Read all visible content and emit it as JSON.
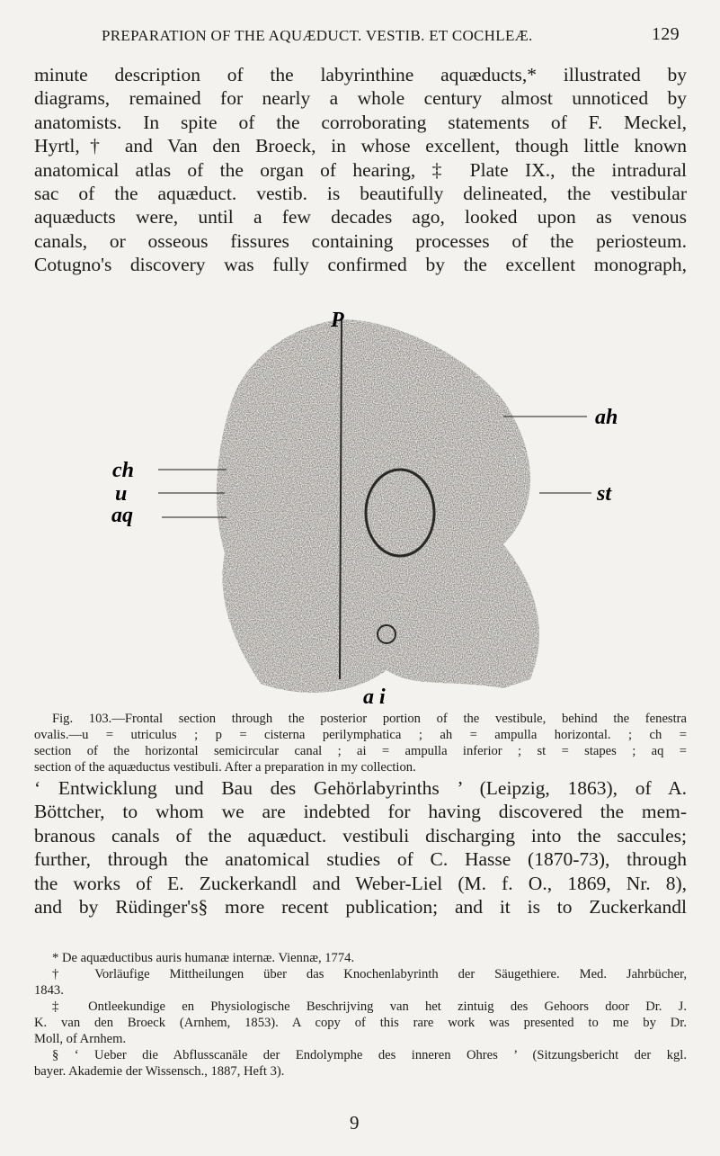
{
  "header": {
    "title": "PREPARATION OF THE AQUÆDUCT. VESTIB. ET COCHLEÆ.",
    "page": "129"
  },
  "paragraph_1": [
    "minute description of the labyrinthine aquæducts,* illustrated by",
    "diagrams, remained for nearly a whole century almost unnoticed by",
    "anatomists. In spite of the corroborating statements of F. Meckel,",
    "Hyrtl,† and Van den Broeck, in whose excellent, though little known",
    "anatomical atlas of the organ of hearing, ‡ Plate IX., the intradural",
    "sac of the aquæduct. vestib. is beautifully delineated, the vestibular",
    "aquæducts were, until a few decades ago, looked upon as venous",
    "canals, or osseous fissures containing processes of the periosteum.",
    "Cotugno's discovery was fully confirmed by the excellent monograph,"
  ],
  "figure": {
    "labels": {
      "p": "P",
      "ah": "ah",
      "ch": "ch",
      "u": "u",
      "aq": "aq",
      "st": "st",
      "ai": "a i"
    }
  },
  "caption": [
    "Fig. 103.—Frontal section through the posterior portion of the vestibule, behind the fenestra",
    "ovalis.—u = utriculus ; p = cisterna perilymphatica ; ah = ampulla horizontal. ; ch =",
    "section of the horizontal semicircular canal ; ai = ampulla inferior ; st = stapes ; aq =",
    "section of the aquæductus vestibuli. After a preparation in my collection."
  ],
  "paragraph_2": [
    "‘ Entwicklung und Bau des Gehörlabyrinths ’ (Leipzig, 1863), of A.",
    "Böttcher, to whom we are indebted for having discovered the mem-",
    "branous canals of the aquæduct. vestibuli discharging into the saccules;",
    "further, through the anatomical studies of C. Hasse (1870-73), through",
    "the works of E. Zuckerkandl and Weber-Liel (M. f. O., 1869, Nr. 8),",
    "and by Rüdinger's§ more recent publication; and it is to Zuckerkandl"
  ],
  "footnotes": [
    [
      "* De aquæductibus auris humanæ internæ. Viennæ, 1774."
    ],
    [
      "† Vorläufige Mittheilungen über das Knochenlabyrinth der Säugethiere. Med. Jahrbücher,",
      "1843."
    ],
    [
      "‡ Ontleekundige en Physiologische Beschrijving van het zintuig des Gehoors door Dr. J.",
      "K. van den Broeck (Arnhem, 1853). A copy of this rare work was presented to me by Dr.",
      "Moll, of Arnhem."
    ],
    [
      "§ ‘ Ueber die Abflusscanäle der Endolymphe des inneren Ohres ’ (Sitzungsbericht der kgl.",
      "bayer. Akademie der Wissensch., 1887, Heft 3)."
    ]
  ],
  "signature": "9"
}
